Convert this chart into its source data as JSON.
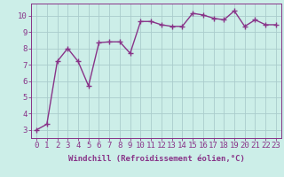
{
  "x": [
    0,
    1,
    2,
    3,
    4,
    5,
    6,
    7,
    8,
    9,
    10,
    11,
    12,
    13,
    14,
    15,
    16,
    17,
    18,
    19,
    20,
    21,
    22,
    23
  ],
  "y": [
    3.0,
    3.35,
    7.2,
    8.0,
    7.2,
    5.7,
    8.35,
    8.4,
    8.4,
    7.7,
    9.65,
    9.65,
    9.45,
    9.35,
    9.35,
    10.15,
    10.05,
    9.85,
    9.75,
    10.3,
    9.35,
    9.75,
    9.45,
    9.45
  ],
  "line_color": "#883388",
  "marker": "+",
  "marker_size": 4,
  "bg_color": "#cceee8",
  "grid_color": "#aacccc",
  "xlabel": "Windchill (Refroidissement éolien,°C)",
  "xlim": [
    -0.5,
    23.5
  ],
  "ylim": [
    2.5,
    10.75
  ],
  "yticks": [
    3,
    4,
    5,
    6,
    7,
    8,
    9,
    10
  ],
  "xticks": [
    0,
    1,
    2,
    3,
    4,
    5,
    6,
    7,
    8,
    9,
    10,
    11,
    12,
    13,
    14,
    15,
    16,
    17,
    18,
    19,
    20,
    21,
    22,
    23
  ],
  "axis_color": "#883388",
  "tick_color": "#883388",
  "label_color": "#883388",
  "font_size_xlabel": 6.5,
  "font_size_tick": 6.5,
  "line_width": 1.0,
  "marker_color": "#883388"
}
